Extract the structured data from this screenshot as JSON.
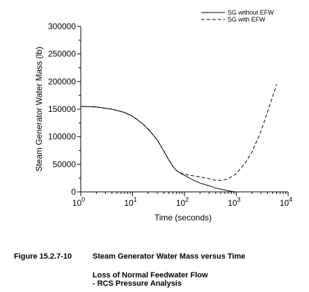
{
  "chart_data": {
    "type": "line",
    "xlabel": "Time (seconds)",
    "ylabel": "Steam Generator Water Mass (lb)",
    "x_scale": "log",
    "xlim": [
      1,
      10000
    ],
    "ylim": [
      0,
      300000
    ],
    "x_ticks": [
      {
        "value": 1,
        "base": "10",
        "exp": "0"
      },
      {
        "value": 10,
        "base": "10",
        "exp": "1"
      },
      {
        "value": 100,
        "base": "10",
        "exp": "2"
      },
      {
        "value": 1000,
        "base": "10",
        "exp": "3"
      },
      {
        "value": 10000,
        "base": "10",
        "exp": "4"
      }
    ],
    "y_ticks": [
      {
        "value": 0,
        "label": "0"
      },
      {
        "value": 50000,
        "label": "50000"
      },
      {
        "value": 100000,
        "label": "100000"
      },
      {
        "value": 150000,
        "label": "150000"
      },
      {
        "value": 200000,
        "label": "200000"
      },
      {
        "value": 250000,
        "label": "250000"
      },
      {
        "value": 300000,
        "label": "300000"
      }
    ],
    "grid": false,
    "legend_position": "top-right",
    "series": [
      {
        "name": "SG without EFW",
        "style": "solid",
        "color": "#000000",
        "x": [
          1,
          2,
          4,
          7,
          10,
          15,
          20,
          30,
          40,
          50,
          60,
          70,
          80,
          100,
          150,
          200,
          300,
          400,
          500,
          600,
          700,
          800,
          900,
          1000
        ],
        "y": [
          155000,
          154000,
          150000,
          144000,
          137000,
          125000,
          114000,
          94000,
          74000,
          58000,
          46000,
          39000,
          35000,
          30000,
          21000,
          16000,
          11000,
          7000,
          5000,
          3500,
          2000,
          1000,
          300,
          0
        ]
      },
      {
        "name": "SG with EFW",
        "style": "dashed",
        "color": "#000000",
        "x": [
          1,
          2,
          4,
          7,
          10,
          15,
          20,
          30,
          40,
          50,
          60,
          70,
          80,
          100,
          150,
          200,
          300,
          400,
          500,
          600,
          700,
          1000,
          1500,
          2000,
          3000,
          4000,
          5000,
          6000
        ],
        "y": [
          155000,
          154000,
          150000,
          144000,
          137000,
          125000,
          114000,
          94000,
          74000,
          58000,
          46000,
          39000,
          35000,
          32000,
          29000,
          27000,
          24000,
          21000,
          21000,
          22000,
          24000,
          33000,
          53000,
          72000,
          110000,
          145000,
          172000,
          195000
        ]
      }
    ]
  },
  "caption": {
    "figure_number": "Figure 15.2.7-10",
    "figure_title": "Steam Generator Water Mass versus Time",
    "subtitle_line1": "Loss of Normal Feedwater Flow",
    "subtitle_line2": "- RCS Pressure Analysis"
  }
}
